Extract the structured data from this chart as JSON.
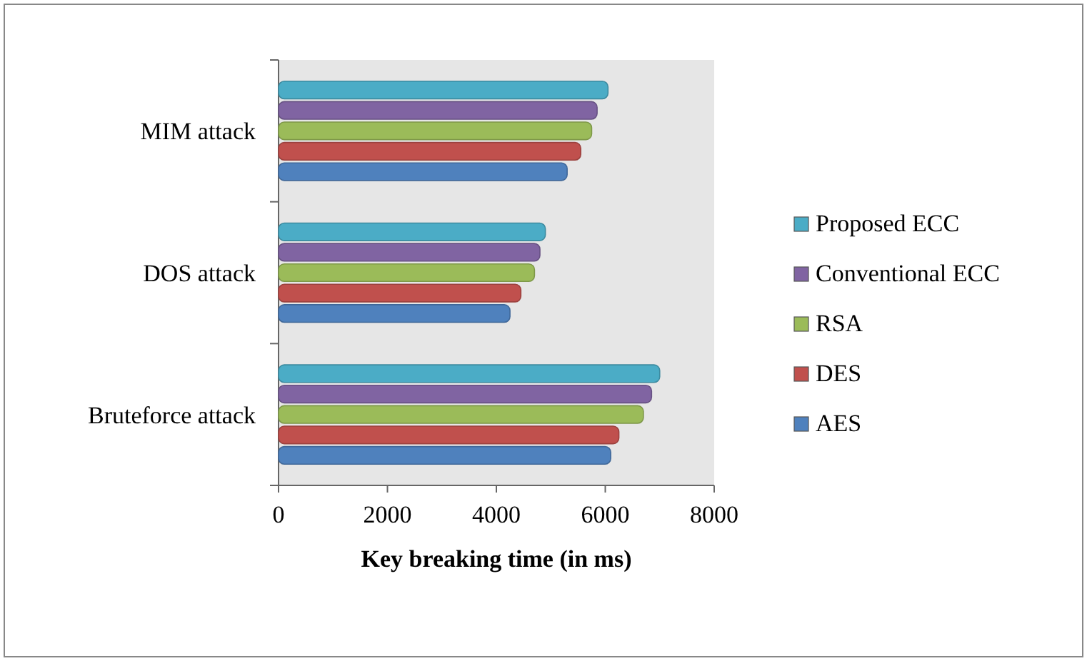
{
  "chart_data": {
    "type": "bar",
    "orientation": "horizontal",
    "xlabel": "Key breaking time (in ms)",
    "categories": [
      "MIM attack",
      "DOS attack",
      "Bruteforce attack"
    ],
    "series": [
      {
        "name": "AES",
        "color": "#4f81bd",
        "values": [
          5300,
          4250,
          6100
        ]
      },
      {
        "name": "DES",
        "color": "#c0504d",
        "values": [
          5550,
          4450,
          6250
        ]
      },
      {
        "name": "RSA",
        "color": "#9bbb59",
        "values": [
          5750,
          4700,
          6700
        ]
      },
      {
        "name": "Conventional ECC",
        "color": "#8064a2",
        "values": [
          5850,
          4800,
          6850
        ]
      },
      {
        "name": "Proposed ECC",
        "color": "#4bacc6",
        "values": [
          6050,
          4900,
          7000
        ]
      }
    ],
    "xlim": [
      0,
      8000
    ],
    "xticks": [
      0,
      2000,
      4000,
      6000,
      8000
    ],
    "grid": false,
    "legend": "right"
  }
}
